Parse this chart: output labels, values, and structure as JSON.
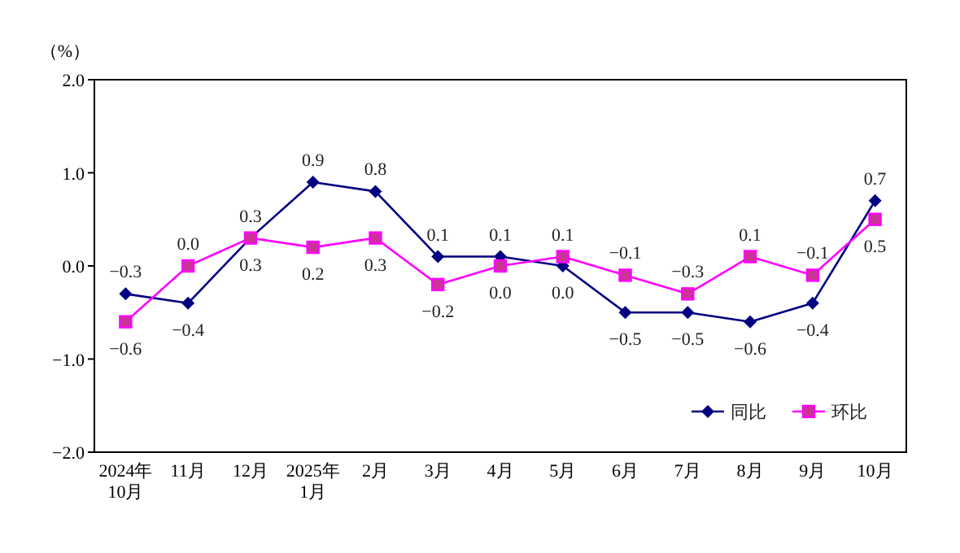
{
  "chart_data": {
    "type": "line",
    "ylabel": "（%）",
    "categories": [
      "2024年\n10月",
      "11月",
      "12月",
      "2025年\n1月",
      "2月",
      "3月",
      "4月",
      "5月",
      "6月",
      "7月",
      "8月",
      "9月",
      "10月"
    ],
    "ylim": [
      -2,
      2
    ],
    "yticks": [
      {
        "value": 2,
        "label": "2.0"
      },
      {
        "value": 1,
        "label": "1.0"
      },
      {
        "value": 0,
        "label": "0.0"
      },
      {
        "value": -1,
        "label": "−1.0"
      },
      {
        "value": -2,
        "label": "−2.0"
      }
    ],
    "grid": false,
    "legend": "bottom right",
    "series": [
      {
        "name": "同比",
        "color": "#000080",
        "marker": "diamond",
        "values": [
          -0.3,
          -0.4,
          0.3,
          0.9,
          0.8,
          0.1,
          0.1,
          0.0,
          -0.5,
          -0.5,
          -0.6,
          -0.4,
          0.7
        ],
        "value_labels": [
          "−0.3",
          "−0.4",
          "0.3",
          "0.9",
          "0.8",
          "0.1",
          "0.1",
          "0.0",
          "−0.5",
          "−0.5",
          "−0.6",
          "−0.4",
          "0.7"
        ]
      },
      {
        "name": "环比",
        "color": "#ff00ff",
        "marker": "square",
        "values": [
          -0.6,
          0.0,
          0.3,
          0.2,
          0.3,
          -0.2,
          0.0,
          0.1,
          -0.1,
          -0.3,
          0.1,
          -0.1,
          0.5
        ],
        "value_labels": [
          "−0.6",
          "0.0",
          "0.3",
          "0.2",
          "0.3",
          "−0.2",
          "0.0",
          "0.1",
          "−0.1",
          "−0.3",
          "0.1",
          "−0.1",
          "0.5"
        ]
      }
    ]
  }
}
